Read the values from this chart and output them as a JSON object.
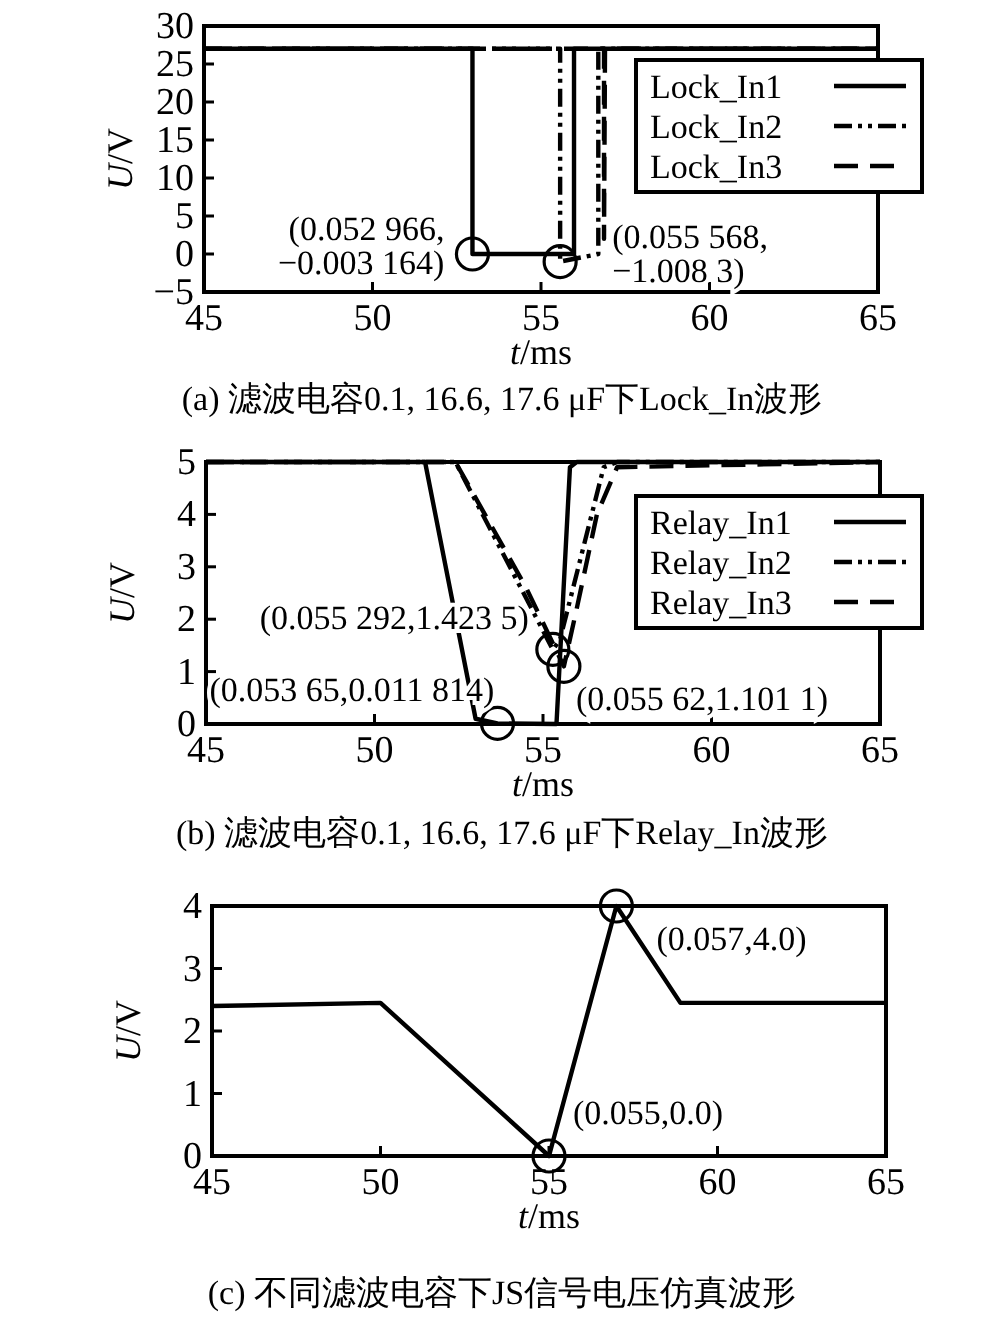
{
  "chart_data": [
    {
      "type": "line",
      "title": "(a)  滤波电容0.1, 16.6, 17.6 μF下Lock_In波形",
      "xlabel": "t/ms",
      "ylabel": "U/V",
      "xlim": [
        45,
        65
      ],
      "xticks": [
        45,
        50,
        55,
        60,
        65
      ],
      "ylim": [
        -5,
        30
      ],
      "yticks": [
        -5,
        0,
        5,
        10,
        15,
        20,
        25,
        30
      ],
      "legend": "right",
      "series": [
        {
          "name": "Lock_In1",
          "color": "#000000",
          "line_style": "solid",
          "x": [
            45,
            52.966,
            52.966,
            55.98,
            55.98,
            65
          ],
          "values": [
            27,
            27,
            0,
            0,
            27,
            27
          ]
        },
        {
          "name": "Lock_In2",
          "color": "#000000",
          "line_style": "dotted",
          "x": [
            45,
            55.568,
            55.568,
            56.7,
            56.7,
            65
          ],
          "values": [
            27,
            27,
            -1,
            0,
            27,
            27
          ]
        },
        {
          "name": "Lock_In3",
          "color": "#000000",
          "line_style": "dashed",
          "x": [
            45,
            56.87,
            56.87,
            56.9,
            65
          ],
          "values": [
            27,
            27,
            2,
            27,
            27
          ]
        }
      ],
      "annotations": [
        {
          "text": "(0.052 966,\n−0.003 164)",
          "x": 52.966,
          "y": -0.003164
        },
        {
          "text": "(0.055 568,\n−1.008 3)",
          "x": 55.568,
          "y": -1.0083
        }
      ]
    },
    {
      "type": "line",
      "title": "(b)  滤波电容0.1, 16.6, 17.6 μF下Relay_In波形",
      "xlabel": "t/ms",
      "ylabel": "U/V",
      "xlim": [
        45,
        65
      ],
      "xticks": [
        45,
        50,
        55,
        60,
        65
      ],
      "ylim": [
        0,
        5
      ],
      "yticks": [
        0,
        1,
        2,
        3,
        4,
        5
      ],
      "legend": "right",
      "series": [
        {
          "name": "Relay_In1",
          "color": "#000000",
          "line_style": "solid",
          "x": [
            45,
            51.5,
            53.0,
            53.65,
            55.4,
            55.8,
            56.0,
            65
          ],
          "values": [
            5,
            5,
            0.1,
            0.01,
            0,
            4.9,
            5,
            5
          ]
        },
        {
          "name": "Relay_In2",
          "color": "#000000",
          "line_style": "dotted",
          "x": [
            45,
            52.4,
            55.292,
            55.5,
            56.8,
            57.2,
            65
          ],
          "values": [
            5,
            5,
            1.42,
            1.6,
            4.9,
            5,
            5
          ]
        },
        {
          "name": "Relay_In3",
          "color": "#000000",
          "line_style": "dashed",
          "x": [
            45,
            52.4,
            54.5,
            55.62,
            56.0,
            56.6,
            57.2,
            65
          ],
          "values": [
            5,
            5,
            2.6,
            1.1,
            2.2,
            4,
            4.9,
            5
          ]
        }
      ],
      "annotations": [
        {
          "text": "(0.055 292,1.423 5)",
          "x": 55.292,
          "y": 1.4235
        },
        {
          "text": "(0.053 65,0.011 814)",
          "x": 53.65,
          "y": 0.011814
        },
        {
          "text": "(0.055 62,1.101 1)",
          "x": 55.62,
          "y": 1.1011
        }
      ]
    },
    {
      "type": "line",
      "title": "(c)  不同滤波电容下JS信号电压仿真波形",
      "xlabel": "t/ms",
      "ylabel": "U/V",
      "xlim": [
        45,
        65
      ],
      "xticks": [
        45,
        50,
        55,
        60,
        65
      ],
      "ylim": [
        0,
        4
      ],
      "yticks": [
        0,
        1,
        2,
        3,
        4
      ],
      "series": [
        {
          "color": "#000000",
          "line_style": "solid",
          "x": [
            45,
            50,
            55,
            57,
            58.9,
            65
          ],
          "values": [
            2.4,
            2.45,
            0,
            4,
            2.45,
            2.45
          ]
        }
      ],
      "annotations": [
        {
          "text": "(0.055,0.0)",
          "x": 55,
          "y": 0
        },
        {
          "text": "(0.057,4.0)",
          "x": 57,
          "y": 4
        }
      ]
    }
  ]
}
